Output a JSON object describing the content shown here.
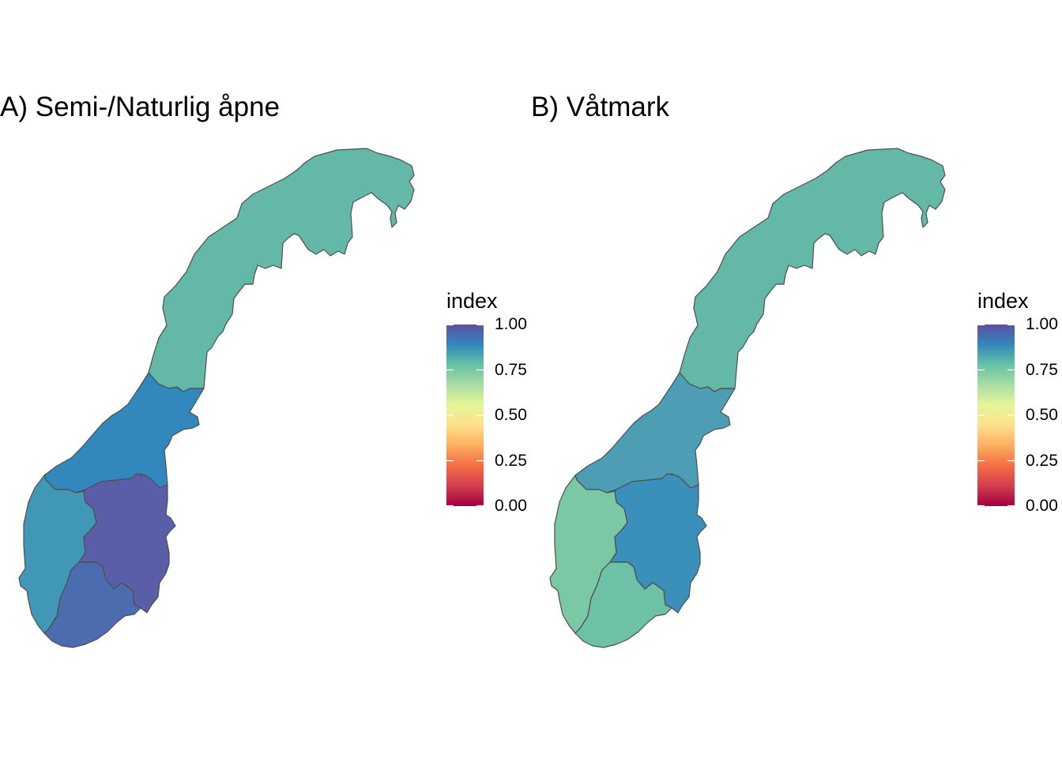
{
  "panels": [
    {
      "title": "A) Semi-/Naturlig åpne",
      "regions": [
        {
          "name": "north",
          "index": 0.78,
          "color": "#63b8a8"
        },
        {
          "name": "central",
          "index": 0.88,
          "color": "#3288bd"
        },
        {
          "name": "west",
          "index": 0.85,
          "color": "#4198b6"
        },
        {
          "name": "east",
          "index": 0.98,
          "color": "#5a5ea8"
        },
        {
          "name": "south",
          "index": 0.95,
          "color": "#4b6db0"
        }
      ]
    },
    {
      "title": "B) Våtmark",
      "regions": [
        {
          "name": "north",
          "index": 0.78,
          "color": "#63b8a8"
        },
        {
          "name": "central",
          "index": 0.84,
          "color": "#4d9db4"
        },
        {
          "name": "west",
          "index": 0.72,
          "color": "#7bc8a4"
        },
        {
          "name": "east",
          "index": 0.87,
          "color": "#3b8fbb"
        },
        {
          "name": "south",
          "index": 0.76,
          "color": "#6cc1a6"
        }
      ]
    }
  ],
  "legend": {
    "title": "index",
    "ticks": [
      "1.00",
      "0.75",
      "0.50",
      "0.25",
      "0.00"
    ],
    "tick_values": [
      1,
      0.75,
      0.5,
      0.25,
      0
    ],
    "limits": [
      0,
      1
    ],
    "palette": "Spectral",
    "colors": [
      "#5e4fa2",
      "#3288bd",
      "#66c2a5",
      "#abdda4",
      "#e6f598",
      "#fee08b",
      "#fdae61",
      "#f46d43",
      "#d53e4f",
      "#9e0142"
    ]
  }
}
